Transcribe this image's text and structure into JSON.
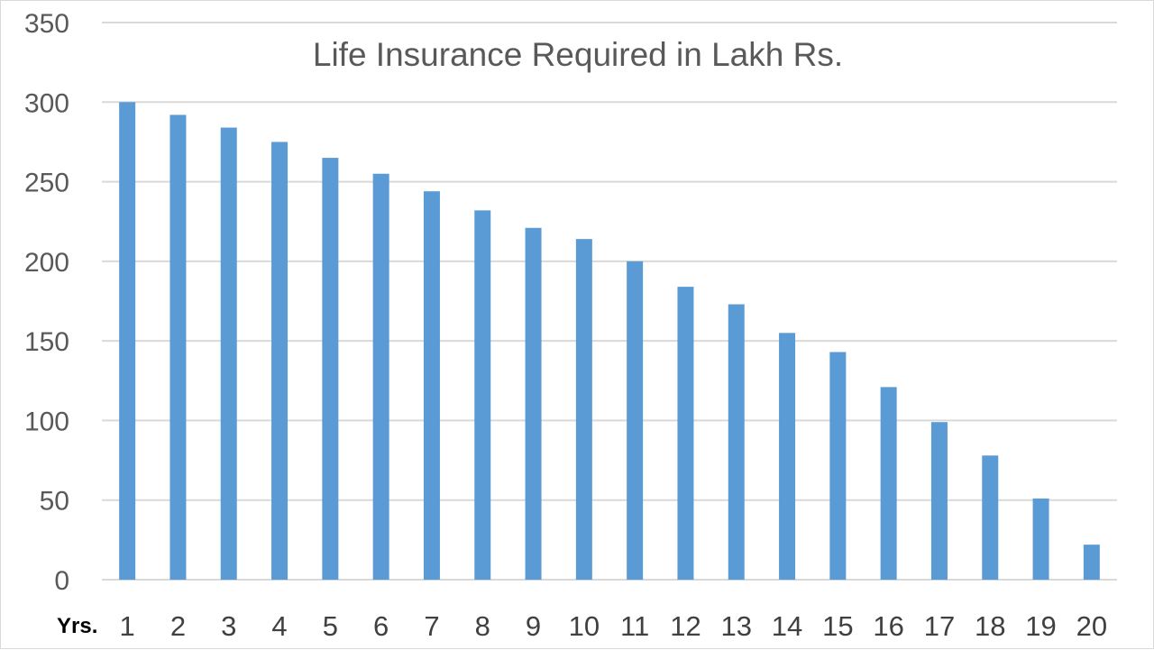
{
  "chart_data": {
    "type": "bar",
    "title": "Life Insurance Required in Lakh Rs.",
    "xlabel": "Yrs.",
    "ylabel": "",
    "categories": [
      "1",
      "2",
      "3",
      "4",
      "5",
      "6",
      "7",
      "8",
      "9",
      "10",
      "11",
      "12",
      "13",
      "14",
      "15",
      "16",
      "17",
      "18",
      "19",
      "20"
    ],
    "values": [
      300,
      292,
      284,
      275,
      265,
      255,
      244,
      232,
      221,
      214,
      200,
      184,
      173,
      155,
      143,
      121,
      99,
      78,
      51,
      22
    ],
    "ylim": [
      0,
      350
    ],
    "yticks": [
      "0",
      "50",
      "100",
      "150",
      "200",
      "250",
      "300",
      "350"
    ],
    "grid": true,
    "legend": "none",
    "colors": {
      "bar": "#5b9bd5",
      "grid": "#d9d9d9",
      "tick_text": "#595959",
      "x_tick_text": "#404040",
      "title_text": "#595959"
    }
  }
}
